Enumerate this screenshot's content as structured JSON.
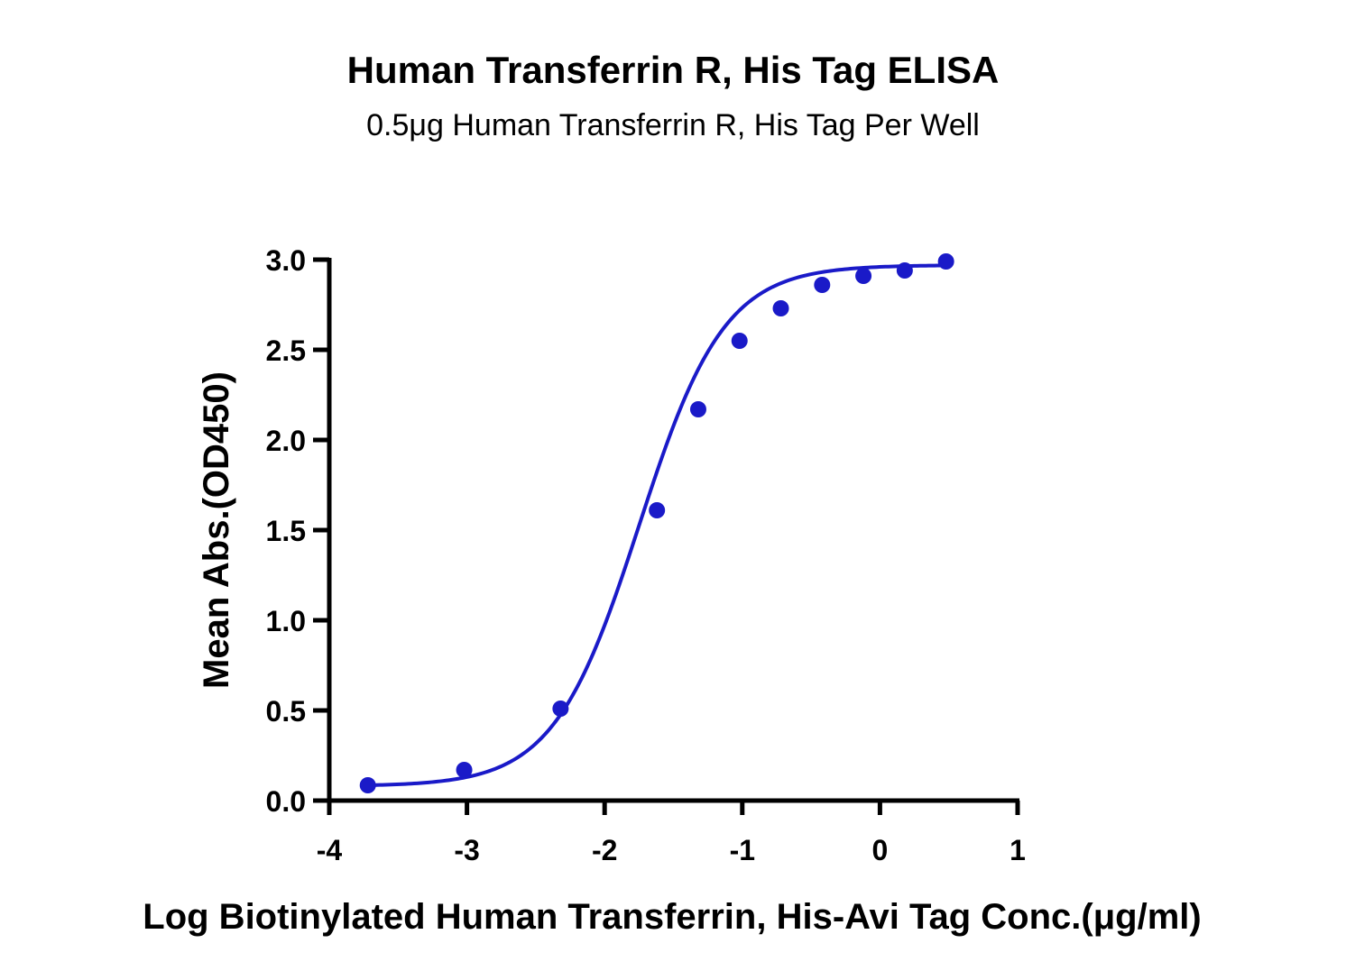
{
  "chart_data": {
    "type": "scatter",
    "title": "Human Transferrin R, His Tag ELISA",
    "subtitle": "0.5μg Human Transferrin R, His Tag Per Well",
    "xlabel": "Log Biotinylated Human Transferrin, His-Avi Tag Conc.(μg/ml)",
    "ylabel": "Mean Abs.(OD450)",
    "xlim": [
      -4,
      1
    ],
    "ylim": [
      0,
      3
    ],
    "x_ticks": [
      "-4",
      "-3",
      "-2",
      "-1",
      "0",
      "1"
    ],
    "y_ticks": [
      "0.0",
      "0.5",
      "1.0",
      "1.5",
      "2.0",
      "2.5",
      "3.0"
    ],
    "grid": false,
    "color": "#1a1ac8",
    "series": [
      {
        "x": [
          -3.72,
          -3.02,
          -2.32,
          -1.62,
          -1.32,
          -1.02,
          -0.72,
          -0.42,
          -0.12,
          0.18,
          0.48
        ],
        "y": [
          0.085,
          0.17,
          0.51,
          1.61,
          2.17,
          2.55,
          2.73,
          2.86,
          2.91,
          2.94,
          2.99
        ]
      }
    ],
    "fit_curve": {
      "model": "4PL",
      "bottom": 0.08,
      "top": 2.97,
      "log_ec50": -1.75,
      "hill": 1.4
    }
  }
}
